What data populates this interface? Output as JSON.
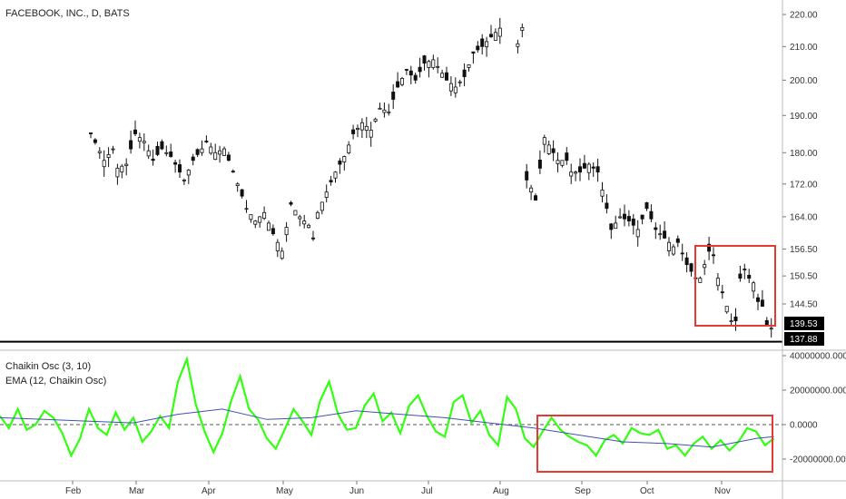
{
  "title": "FACEBOOK, INC., D, BATS",
  "oscillator": {
    "name": "Chaikin Osc (3, 10)",
    "ema_name": "EMA (12, Chaikin Osc)",
    "colors": {
      "osc": "#33ff11",
      "ema": "#3f51b5",
      "zero_line": "#555555"
    }
  },
  "chart_data": [
    {
      "type": "candlestick",
      "title": "FACEBOOK, INC., D, BATS",
      "y_ticks": [
        "220.00",
        "210.00",
        "200.00",
        "190.00",
        "180.00",
        "172.00",
        "164.00",
        "156.50",
        "150.50",
        "144.50"
      ],
      "scale": "log",
      "x_ticks": [
        "Feb",
        "Mar",
        "Apr",
        "May",
        "Jun",
        "Jul",
        "Aug",
        "Sep",
        "Oct",
        "Nov"
      ],
      "last_price_labels": [
        "139.53",
        "137.88"
      ],
      "horizontal_level": 137.88,
      "highlight_box": {
        "x_range": [
          "Oct",
          "Nov"
        ],
        "y_range": [
          139.5,
          157.5
        ],
        "color": "#e53935"
      },
      "close_path": [
        [
          0,
          186
        ],
        [
          4,
          187
        ],
        [
          8,
          186.5
        ],
        [
          12,
          181
        ],
        [
          16,
          184
        ],
        [
          20,
          185
        ],
        [
          23,
          178
        ],
        [
          25,
          181
        ],
        [
          26,
          176
        ],
        [
          28,
          177
        ],
        [
          30,
          185
        ],
        [
          32,
          183
        ],
        [
          34,
          178
        ],
        [
          36,
          181
        ],
        [
          38,
          179
        ],
        [
          41,
          173
        ],
        [
          43,
          178
        ],
        [
          45,
          181
        ],
        [
          46,
          183
        ],
        [
          48,
          180
        ],
        [
          50,
          181
        ],
        [
          53,
          172
        ],
        [
          55,
          166
        ],
        [
          57,
          163
        ],
        [
          59,
          165
        ],
        [
          61,
          160
        ],
        [
          63,
          156
        ],
        [
          65,
          167
        ],
        [
          67,
          164
        ],
        [
          69,
          162
        ],
        [
          70,
          159
        ],
        [
          71,
          165
        ],
        [
          73,
          170
        ],
        [
          75,
          175
        ],
        [
          77,
          179
        ],
        [
          79,
          185
        ],
        [
          81,
          188
        ],
        [
          83,
          186
        ],
        [
          85,
          192
        ],
        [
          87,
          191
        ],
        [
          89,
          198
        ],
        [
          91,
          203
        ],
        [
          93,
          200
        ],
        [
          95,
          205
        ],
        [
          97,
          206
        ],
        [
          100,
          200
        ],
        [
          102,
          198
        ],
        [
          104,
          201
        ],
        [
          106,
          208
        ],
        [
          108,
          210
        ],
        [
          110,
          213
        ],
        [
          113,
          217
        ],
        [
          118,
          173
        ],
        [
          119,
          171
        ],
        [
          120,
          168
        ],
        [
          121,
          176
        ],
        [
          122,
          184
        ],
        [
          123,
          182
        ],
        [
          125,
          178
        ],
        [
          127,
          178
        ],
        [
          128,
          175
        ],
        [
          130,
          175
        ],
        [
          132,
          177
        ],
        [
          134,
          175
        ],
        [
          136,
          166
        ],
        [
          137,
          161
        ],
        [
          139,
          164
        ],
        [
          141,
          163
        ],
        [
          143,
          161
        ],
        [
          145,
          166
        ],
        [
          147,
          161
        ],
        [
          149,
          159
        ],
        [
          151,
          157
        ],
        [
          152,
          158
        ],
        [
          154,
          153
        ],
        [
          156,
          150
        ],
        [
          157,
          150
        ],
        [
          159,
          156
        ],
        [
          160,
          155
        ],
        [
          161,
          150
        ],
        [
          163,
          144
        ],
        [
          164,
          141
        ],
        [
          165,
          141
        ],
        [
          166,
          150
        ],
        [
          167,
          152
        ],
        [
          168,
          150
        ],
        [
          169,
          149
        ],
        [
          170,
          145
        ],
        [
          171,
          144
        ],
        [
          172,
          140
        ],
        [
          173,
          139.5
        ],
        [
          174,
          137.9
        ]
      ],
      "highlight_series": "close_path"
    },
    {
      "type": "line",
      "title": "Chaikin Osc (3, 10)",
      "y_ticks": [
        "40000000.0000",
        "20000000.0000",
        "0.0000",
        "-20000000.0000"
      ],
      "ylim": [
        -30000000,
        43000000
      ],
      "series": [
        {
          "name": "Chaikin Osc (3, 10)",
          "x": [
            0,
            2,
            4,
            6,
            8,
            10,
            12,
            14,
            16,
            18,
            20,
            22,
            24,
            26,
            28,
            30,
            32,
            34,
            36,
            38,
            40,
            42,
            44,
            46,
            48,
            50,
            52,
            54,
            56,
            58,
            60,
            62,
            64,
            66,
            68,
            70,
            72,
            74,
            76,
            78,
            80,
            82,
            84,
            86,
            88,
            90,
            92,
            94,
            96,
            98,
            100,
            102,
            104,
            106,
            108,
            110,
            112,
            114,
            116,
            118,
            120,
            122,
            124,
            126,
            128,
            130,
            132,
            134,
            136,
            138,
            140,
            142,
            144,
            146,
            148,
            150,
            152,
            154,
            156,
            158,
            160,
            162,
            164,
            166,
            168,
            170,
            172,
            174
          ],
          "values": [
            5,
            -2,
            9,
            -3,
            0,
            8,
            4,
            -5,
            -18,
            -8,
            9,
            -2,
            -6,
            7,
            -3,
            4,
            -10,
            -4,
            5,
            -2,
            25,
            38,
            12,
            -4,
            -16,
            -5,
            14,
            28,
            9,
            3,
            -8,
            -14,
            -3,
            9,
            2,
            -6,
            14,
            25,
            6,
            -3,
            -2,
            11,
            18,
            2,
            7,
            -5,
            11,
            17,
            5,
            -4,
            -7,
            13,
            17,
            1,
            8,
            -6,
            -12,
            16,
            9,
            -8,
            -13,
            -4,
            4,
            -3,
            -7,
            -10,
            -12,
            -18,
            -9,
            -6,
            -11,
            -2,
            -5,
            -6,
            -3,
            -14,
            -12,
            -18,
            -11,
            -7,
            -14,
            -9,
            -15,
            -10,
            -2,
            -4,
            -12,
            -8
          ]
        },
        {
          "name": "EMA (12, Chaikin Osc)",
          "x": [
            0,
            10,
            20,
            30,
            40,
            50,
            60,
            70,
            80,
            90,
            100,
            110,
            120,
            130,
            140,
            150,
            160,
            170,
            174
          ],
          "values": [
            4,
            3,
            2,
            1,
            6,
            9,
            3,
            4,
            8,
            6,
            4,
            1,
            -2,
            -6,
            -10,
            -11,
            -13,
            -8,
            -7
          ]
        }
      ],
      "highlight_box": {
        "x_range": [
          "Aug",
          "Nov"
        ],
        "color": "#e53935"
      }
    }
  ]
}
